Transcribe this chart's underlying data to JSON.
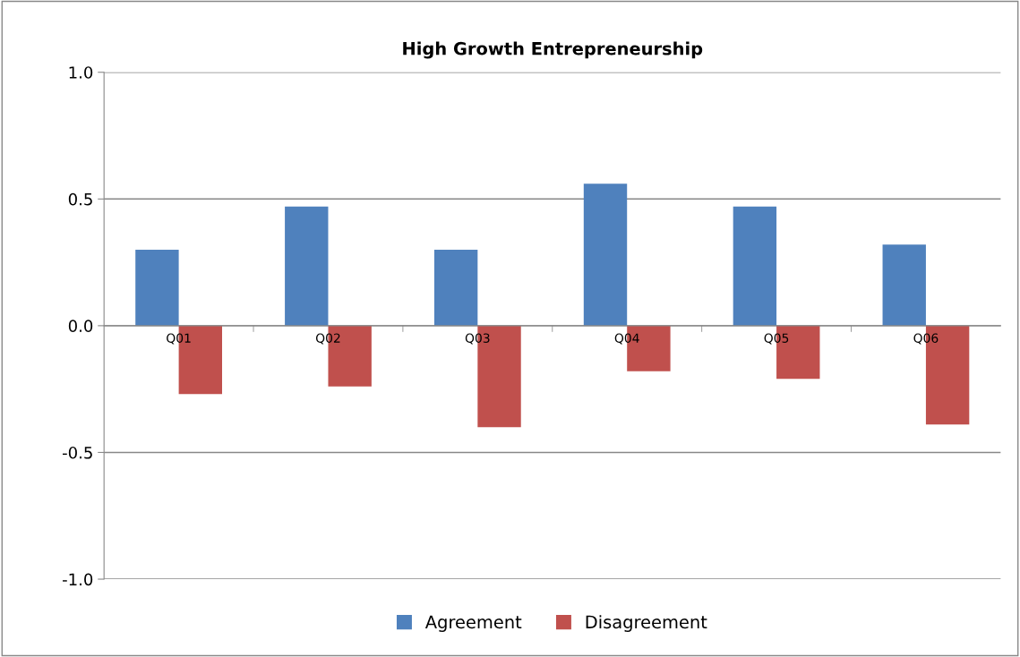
{
  "chart_data": {
    "type": "bar",
    "title": "High Growth Entrepreneurship",
    "categories": [
      "Q01",
      "Q02",
      "Q03",
      "Q04",
      "Q05",
      "Q06"
    ],
    "series": [
      {
        "name": "Agreement",
        "color": "#4f81bd",
        "values": [
          0.3,
          0.47,
          0.3,
          0.56,
          0.47,
          0.32
        ]
      },
      {
        "name": "Disagreement",
        "color": "#c0504d",
        "values": [
          -0.27,
          -0.24,
          -0.4,
          -0.18,
          -0.21,
          -0.39
        ]
      }
    ],
    "ylim": [
      -1.0,
      1.0
    ],
    "yticks": [
      {
        "value": -1.0,
        "label": "-1.0"
      },
      {
        "value": -0.5,
        "label": "-0.5"
      },
      {
        "value": 0.0,
        "label": "0.0"
      },
      {
        "value": 0.5,
        "label": "0.5"
      },
      {
        "value": 1.0,
        "label": "1.0"
      }
    ],
    "grid": "y",
    "legend": "bottom"
  }
}
